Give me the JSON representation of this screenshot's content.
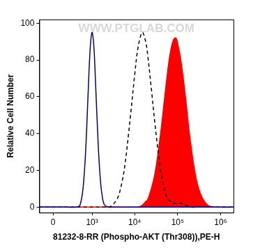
{
  "chart_data": {
    "type": "line",
    "x_label": "81232-8-RR (Phospho-AKT (Thr308)),PE-H",
    "y_label": "Relative Cell Number",
    "annotations": [
      {
        "text": "WWW.PTGLAB.COM"
      }
    ],
    "log": "x",
    "grid": false,
    "xlim": [
      -200,
      2000000
    ],
    "xticks": [
      0,
      {
        "value": 1000,
        "label": "10³"
      },
      {
        "value": 10000,
        "label": "10⁴"
      },
      {
        "value": 100000,
        "label": "10⁵"
      },
      {
        "value": 1000000,
        "label": "10⁶"
      }
    ],
    "ylim": [
      -3,
      102
    ],
    "yticks": [
      0,
      20,
      40,
      60,
      80,
      100
    ],
    "x": [
      -200,
      0,
      200,
      400,
      500,
      600,
      700,
      800,
      900,
      1000,
      1100,
      1200,
      1400,
      1600,
      1800,
      2000,
      2500,
      3000,
      4000,
      5000,
      6000,
      8000,
      10000,
      12000,
      15000,
      18000,
      20000,
      25000,
      30000,
      40000,
      50000,
      60000,
      70000,
      80000,
      90000,
      100000,
      120000,
      150000,
      200000,
      300000,
      500000,
      1000000,
      2000000
    ],
    "series": [
      {
        "color": "#000080",
        "line_style": "solid",
        "values": [
          0,
          0,
          0,
          0,
          1,
          10,
          31,
          61,
          86,
          95,
          88,
          70,
          34,
          13,
          4,
          1,
          0,
          0,
          0,
          0,
          0,
          0,
          0,
          0,
          0,
          0,
          0,
          0,
          0,
          0,
          0,
          0,
          0,
          0,
          0,
          0,
          0,
          0,
          0,
          0,
          0,
          0,
          0
        ]
      },
      {
        "color": "#000000",
        "line_style": "dashed",
        "values": [
          0,
          0,
          0,
          0,
          0,
          0,
          0,
          0,
          0,
          0,
          0,
          0,
          0,
          0,
          0,
          0,
          0,
          1,
          5,
          13,
          24,
          50,
          72,
          87,
          95,
          90,
          83,
          62,
          44,
          20,
          9,
          4,
          3,
          2,
          2,
          2,
          2,
          1,
          0,
          0,
          0,
          0,
          0
        ]
      },
      {
        "color": "#ff0000",
        "line_style": "solid",
        "type": "area",
        "values": [
          0,
          0,
          0,
          0,
          0,
          0,
          0,
          0,
          0,
          0,
          0,
          0,
          0,
          0,
          0,
          0,
          0,
          0,
          0,
          0,
          0,
          0,
          0,
          0,
          1,
          3,
          4,
          11,
          19,
          40,
          60,
          76,
          86,
          91,
          92,
          89,
          79,
          61,
          35,
          11,
          1,
          0,
          0
        ]
      }
    ]
  }
}
